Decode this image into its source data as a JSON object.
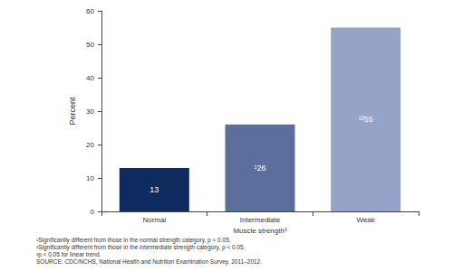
{
  "chart_data": {
    "type": "bar",
    "x_label": "Muscle strength³",
    "y_label": "Percent",
    "categories": [
      "Normal",
      "Intermediate",
      "Weak"
    ],
    "values": [
      13,
      26,
      55
    ],
    "value_labels": [
      "13",
      "¹26",
      "¹²55"
    ],
    "colors": [
      "#0f2a5e",
      "#5c6f9c",
      "#94a3c7"
    ],
    "ylim": [
      0,
      60
    ],
    "yticks": [
      0,
      10,
      20,
      30,
      40,
      50,
      60
    ],
    "grid": false,
    "data_labels": true,
    "notes": [
      "¹Significantly different from those in the normal strength category, p < 0.05.",
      "²Significantly different from those in the intermediate strength category, p < 0.05.",
      "³p < 0.05 for linear trend.",
      "SOURCE: CDC/NCHS, National Health and Nutrition Examination Survey, 2011–2012."
    ]
  }
}
